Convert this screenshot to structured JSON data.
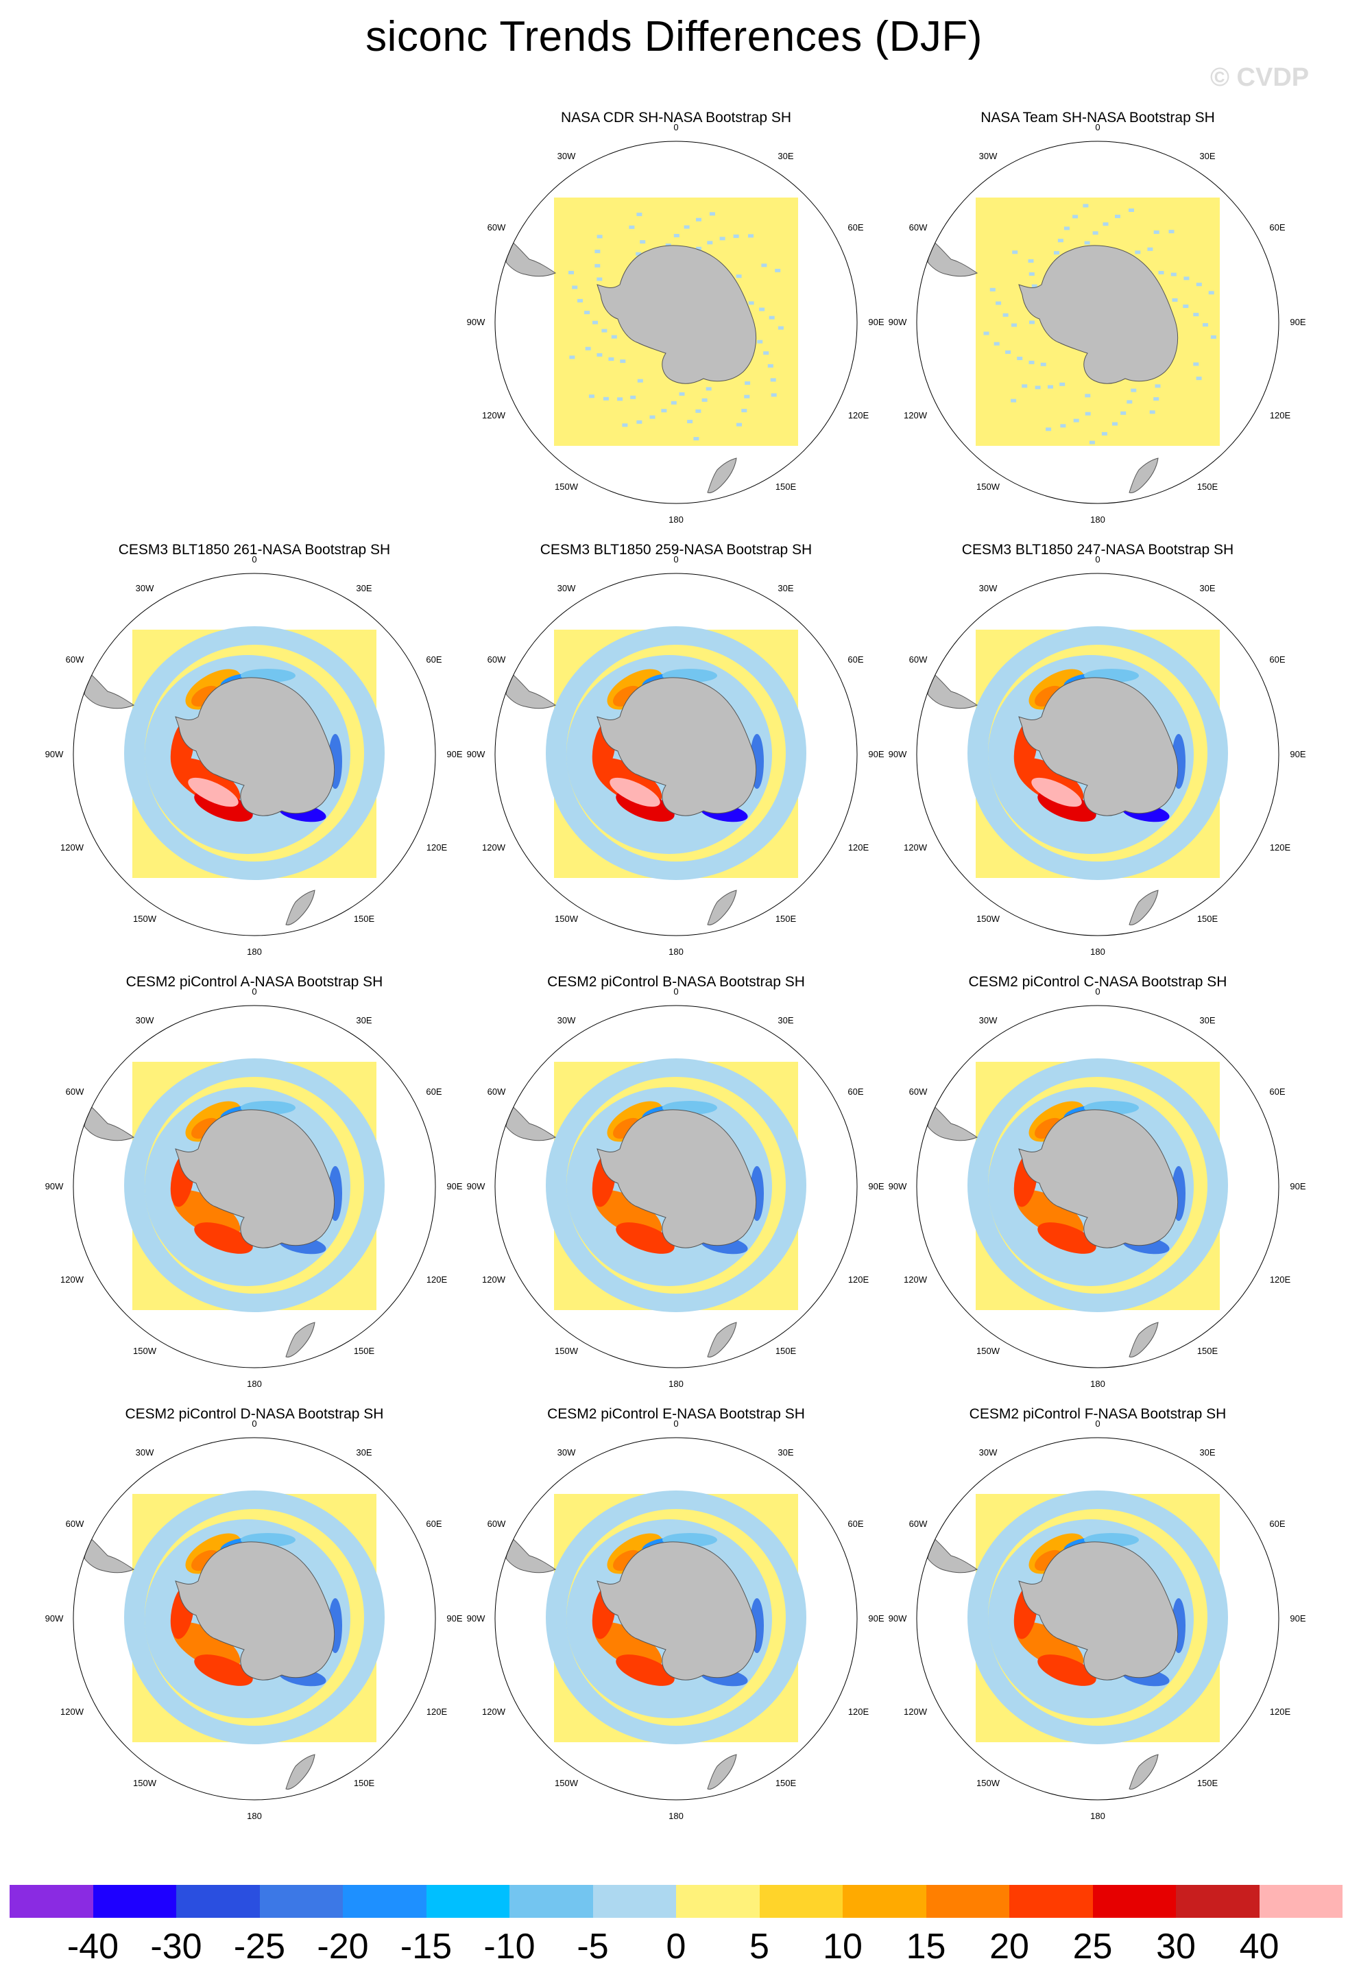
{
  "title": "siconc Trends Differences (DJF)",
  "watermark": "© CVDP",
  "lon_labels": {
    "top": "0",
    "bottom": "180",
    "30W": "30W",
    "30E": "30E",
    "60W": "60W",
    "60E": "60E",
    "90W": "90W",
    "90E": "90E",
    "120W": "120W",
    "120E": "120E",
    "150W": "150W",
    "150E": "150E"
  },
  "panels": [
    {
      "title": "NASA CDR SH-NASA Bootstrap SH",
      "pattern": "obs"
    },
    {
      "title": "NASA Team SH-NASA Bootstrap SH",
      "pattern": "obs"
    },
    {
      "title": "CESM3 BLT1850 261-NASA Bootstrap SH",
      "pattern": "strong"
    },
    {
      "title": "CESM3 BLT1850 259-NASA Bootstrap SH",
      "pattern": "strong"
    },
    {
      "title": "CESM3 BLT1850 247-NASA Bootstrap SH",
      "pattern": "strong"
    },
    {
      "title": "CESM2 piControl A-NASA Bootstrap SH",
      "pattern": "model"
    },
    {
      "title": "CESM2 piControl B-NASA Bootstrap SH",
      "pattern": "model"
    },
    {
      "title": "CESM2 piControl C-NASA Bootstrap SH",
      "pattern": "model"
    },
    {
      "title": "CESM2 piControl D-NASA Bootstrap SH",
      "pattern": "model"
    },
    {
      "title": "CESM2 piControl E-NASA Bootstrap SH",
      "pattern": "model"
    },
    {
      "title": "CESM2 piControl F-NASA Bootstrap SH",
      "pattern": "model"
    }
  ],
  "colorbar": {
    "colors": [
      "#8a2be2",
      "#1e00ff",
      "#2a4fe0",
      "#3c78e6",
      "#1e90ff",
      "#00bfff",
      "#73c5f0",
      "#add8f0",
      "#fff27a",
      "#ffd42a",
      "#ffaa00",
      "#ff7f00",
      "#ff3c00",
      "#e60000",
      "#c81e1e",
      "#ffb4b4"
    ],
    "labels": [
      "-40",
      "-30",
      "-25",
      "-20",
      "-15",
      "-10",
      "-5",
      "0",
      "5",
      "10",
      "15",
      "20",
      "25",
      "30",
      "40"
    ]
  }
}
